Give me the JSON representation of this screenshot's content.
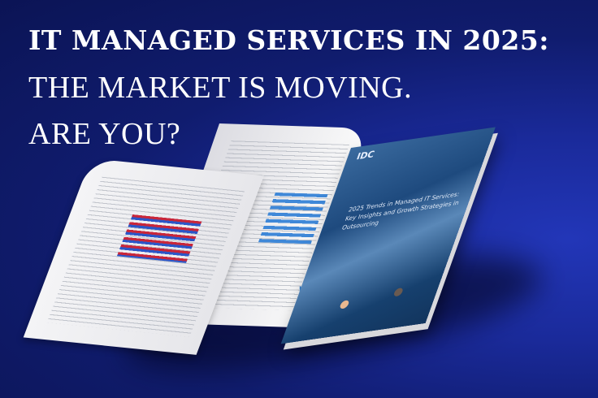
{
  "headline": {
    "line1": "IT MANAGED SERVICES IN 2025:",
    "line2": "THE MARKET IS MOVING.",
    "line3": "ARE YOU?"
  },
  "report": {
    "publisher": "IDC",
    "title": "2025 Trends in Managed IT Services: Key Insights and Growth Strategies in Outsourcing"
  },
  "colors": {
    "background": "#0b1455",
    "accent": "#2236b8"
  }
}
